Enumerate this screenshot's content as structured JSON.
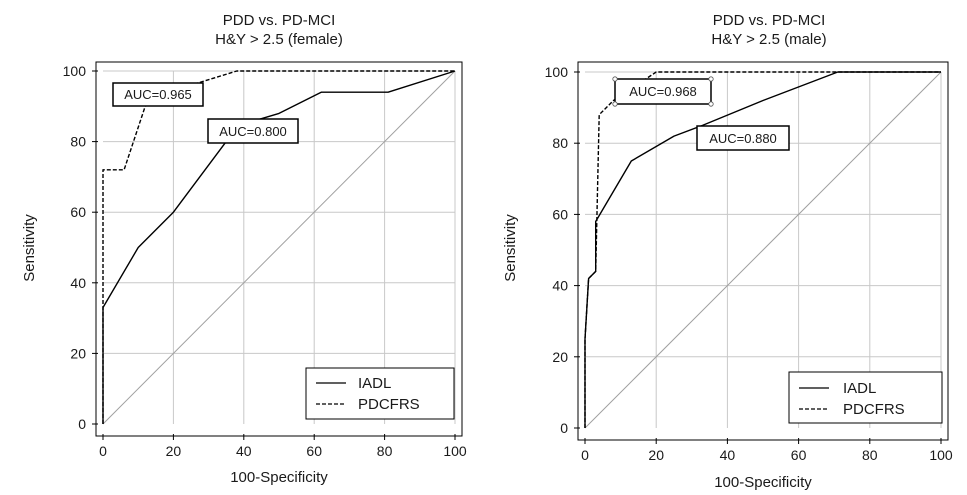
{
  "chart_data": [
    {
      "type": "line",
      "title": "PDD vs. PD-MCI",
      "subtitle": "H&Y > 2.5 (female)",
      "xlabel": "100-Specificity",
      "ylabel": "Sensitivity",
      "xlim": [
        0,
        100
      ],
      "ylim": [
        0,
        100
      ],
      "ticks": [
        "0",
        "20",
        "40",
        "60",
        "80",
        "100"
      ],
      "grid": true,
      "legend_position": "bottom-right",
      "series": [
        {
          "name": "IADL",
          "style": "solid",
          "auc_label": "AUC=0.800",
          "points": [
            [
              0,
              0
            ],
            [
              0,
              33
            ],
            [
              10,
              50
            ],
            [
              20,
              60
            ],
            [
              35,
              80
            ],
            [
              40,
              85
            ],
            [
              50,
              88
            ],
            [
              62,
              94
            ],
            [
              81,
              94
            ],
            [
              100,
              100
            ]
          ]
        },
        {
          "name": "PDCFRS",
          "style": "dashed",
          "auc_label": "AUC=0.965",
          "points": [
            [
              0,
              0
            ],
            [
              0,
              72
            ],
            [
              6,
              72
            ],
            [
              12,
              90
            ],
            [
              25,
              96
            ],
            [
              38,
              100
            ],
            [
              100,
              100
            ]
          ]
        }
      ]
    },
    {
      "type": "line",
      "title": "PDD vs. PD-MCI",
      "subtitle": "H&Y > 2.5 (male)",
      "xlabel": "100-Specificity",
      "ylabel": "Sensitivity",
      "xlim": [
        0,
        100
      ],
      "ylim": [
        0,
        100
      ],
      "ticks": [
        "0",
        "20",
        "40",
        "60",
        "80",
        "100"
      ],
      "grid": true,
      "legend_position": "bottom-right",
      "series": [
        {
          "name": "IADL",
          "style": "solid",
          "auc_label": "AUC=0.880",
          "points": [
            [
              0,
              0
            ],
            [
              0,
              25
            ],
            [
              1,
              42
            ],
            [
              3,
              44
            ],
            [
              3,
              58
            ],
            [
              13,
              75
            ],
            [
              25,
              82
            ],
            [
              33,
              85
            ],
            [
              50,
              92
            ],
            [
              71,
              100
            ],
            [
              100,
              100
            ]
          ]
        },
        {
          "name": "PDCFRS",
          "style": "dashed",
          "auc_label": "AUC=0.968",
          "points": [
            [
              0,
              0
            ],
            [
              0,
              25
            ],
            [
              1,
              42
            ],
            [
              3,
              44
            ],
            [
              4,
              88
            ],
            [
              8,
              92
            ],
            [
              20,
              100
            ],
            [
              100,
              100
            ]
          ]
        }
      ]
    }
  ]
}
